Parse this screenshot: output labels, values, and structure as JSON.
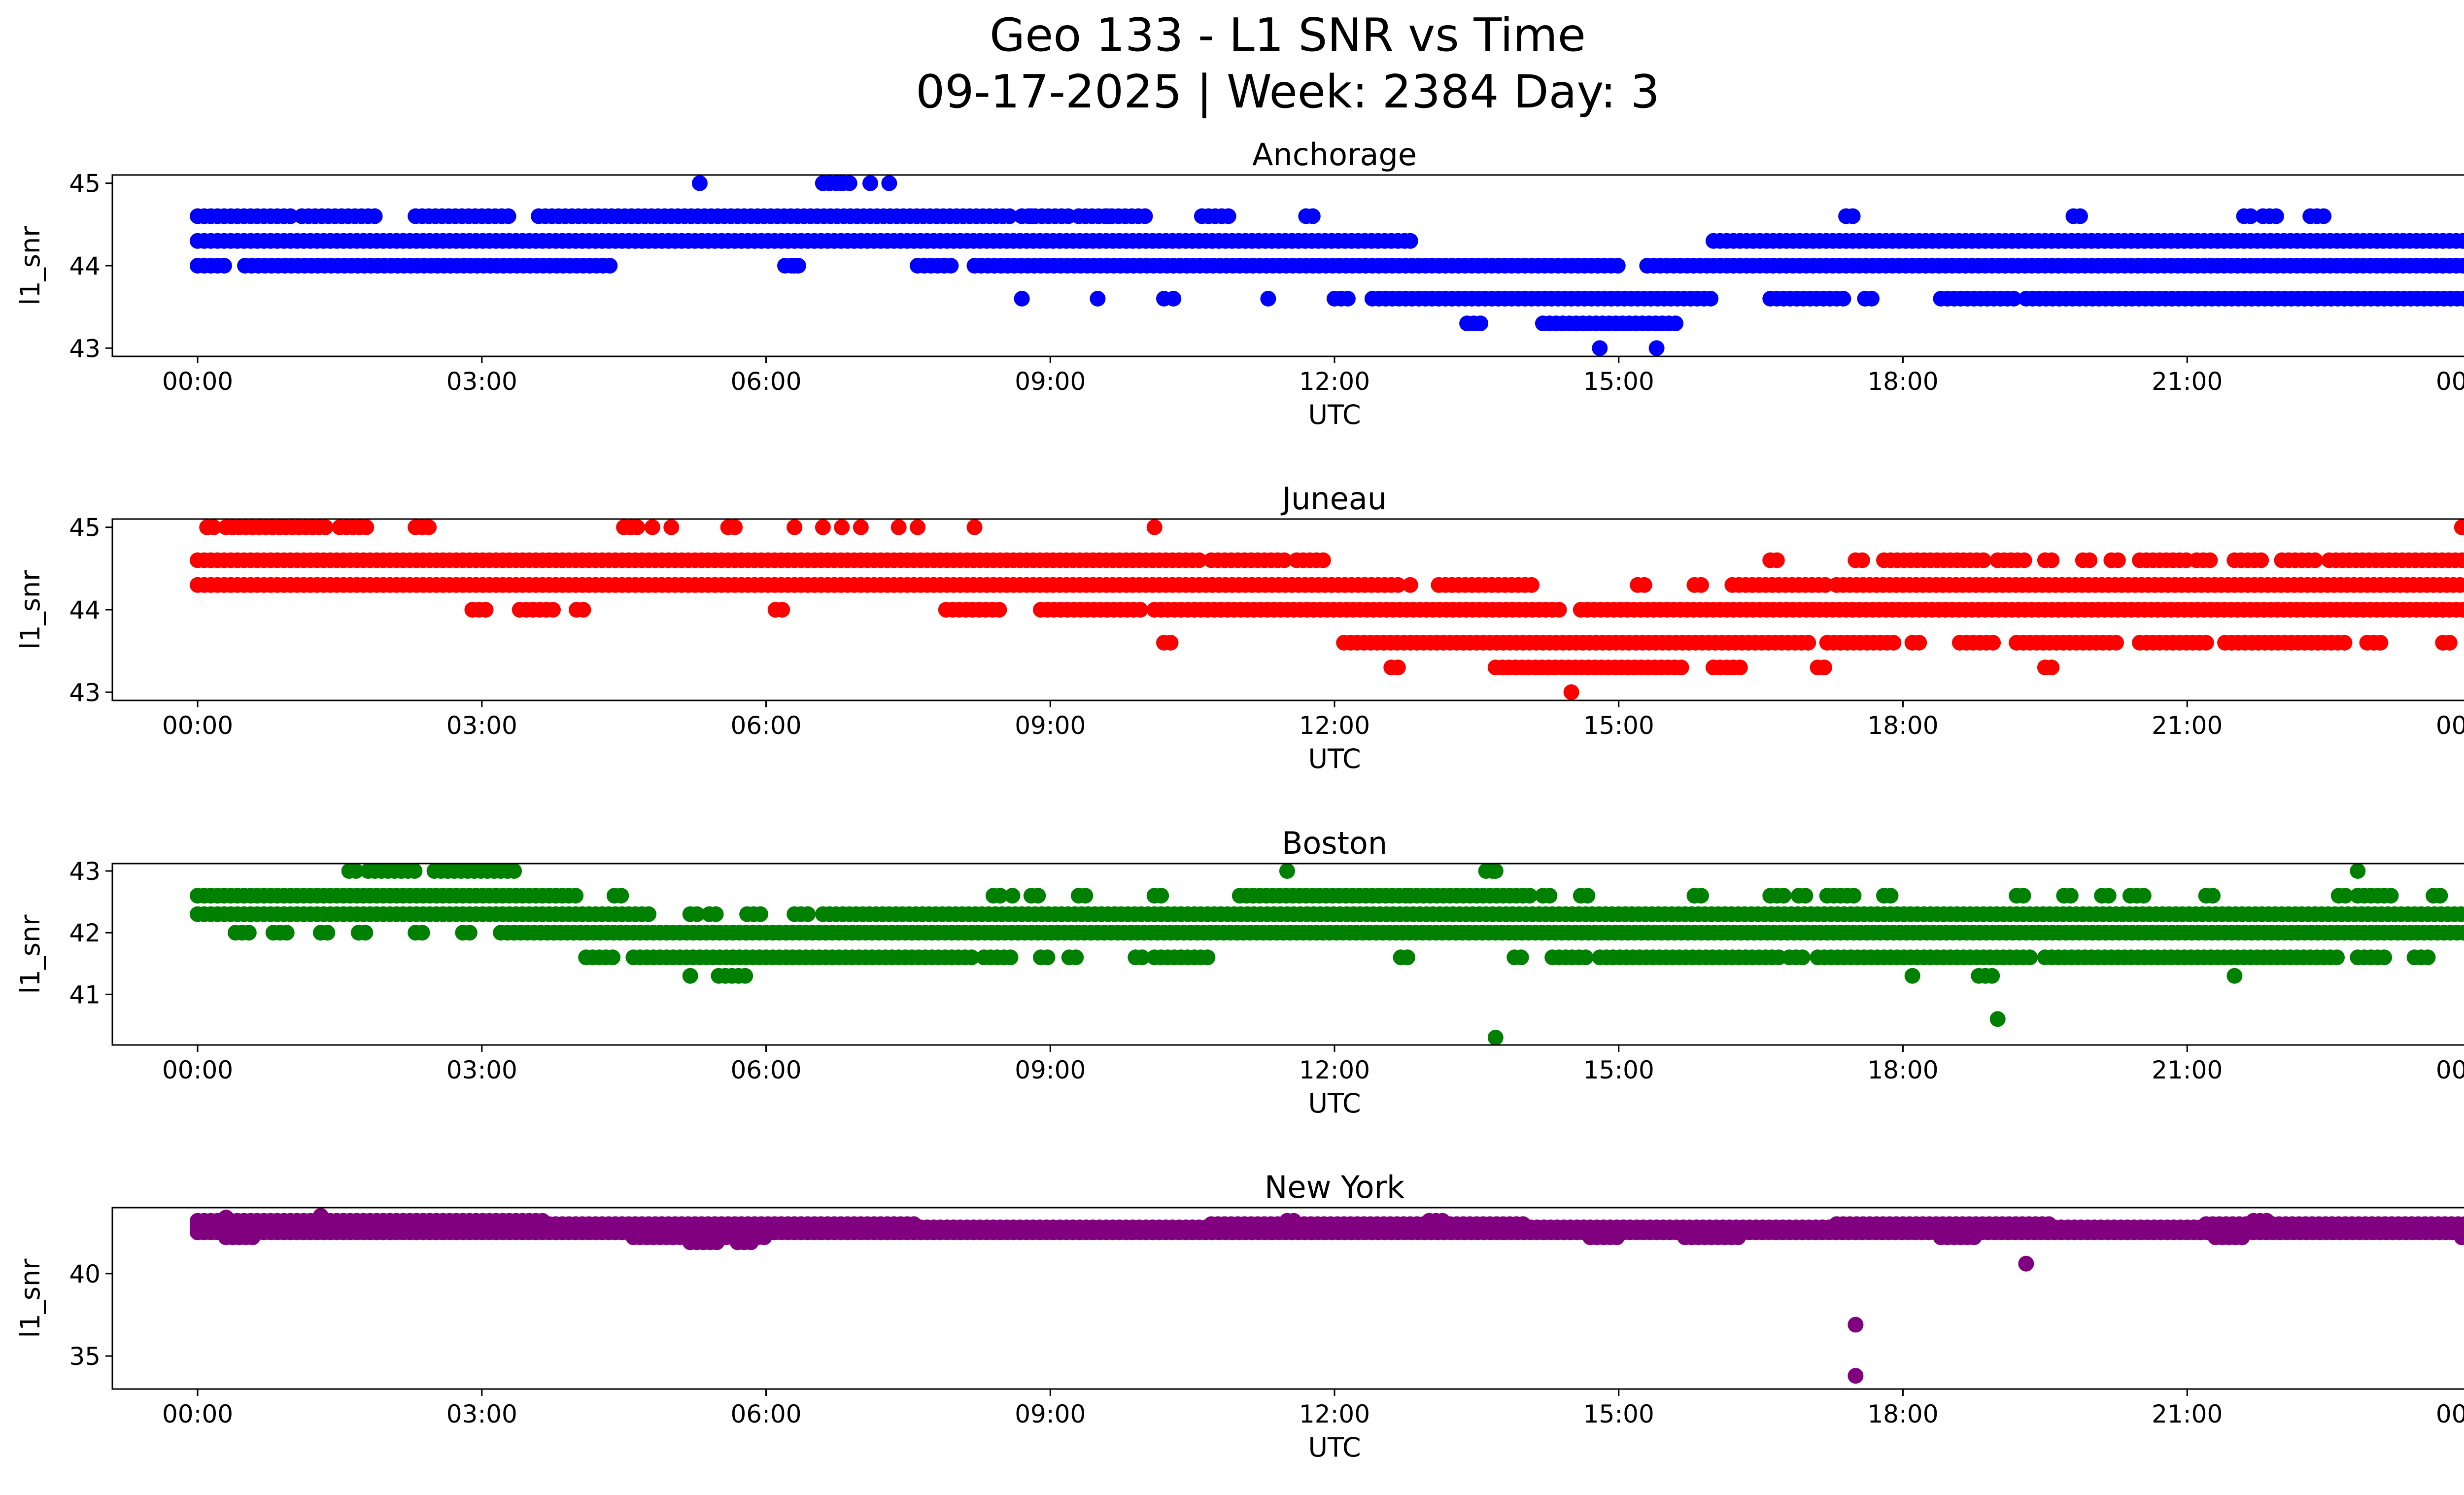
{
  "figure": {
    "title_line1": "Geo 133 - L1 SNR vs Time",
    "title_line2": "09-17-2025 | Week: 2384 Day: 3"
  },
  "chart_data": [
    {
      "type": "scatter",
      "title": "Anchorage",
      "xlabel": "UTC",
      "ylabel": "l1_snr",
      "color": "#0000ff",
      "ylim": [
        42.9,
        45.1
      ],
      "yticks": [
        43,
        44,
        45
      ],
      "xticks": [
        "00:00",
        "03:00",
        "06:00",
        "09:00",
        "12:00",
        "15:00",
        "18:00",
        "21:00",
        "00:00"
      ],
      "bands": [
        {
          "y": 44.6,
          "segments": [
            [
              0.0,
              1.0
            ],
            [
              1.1,
              1.9
            ],
            [
              2.3,
              3.3
            ],
            [
              3.6,
              8.6
            ],
            [
              8.7,
              9.2
            ],
            [
              9.3,
              10.0
            ],
            [
              10.6,
              10.9
            ],
            [
              11.7,
              11.8
            ],
            [
              17.4,
              17.5
            ],
            [
              19.8,
              19.9
            ],
            [
              21.6,
              21.7
            ],
            [
              21.8,
              22.0
            ],
            [
              22.3,
              22.5
            ]
          ]
        },
        {
          "y": 44.3,
          "segments": [
            [
              0.0,
              12.8
            ],
            [
              16.0,
              24.0
            ]
          ]
        },
        {
          "y": 44.0,
          "segments": [
            [
              0.0,
              0.3
            ],
            [
              0.5,
              4.4
            ],
            [
              6.2,
              6.4
            ],
            [
              7.6,
              8.0
            ],
            [
              8.2,
              15.0
            ],
            [
              15.3,
              24.0
            ]
          ]
        },
        {
          "y": 43.6,
          "segments": [
            [
              12.0,
              12.2
            ],
            [
              12.4,
              16.0
            ],
            [
              16.6,
              17.4
            ],
            [
              17.6,
              17.7
            ],
            [
              18.4,
              19.2
            ],
            [
              19.3,
              24.0
            ]
          ]
        },
        {
          "y": 43.3,
          "segments": [
            [
              13.4,
              13.6
            ],
            [
              14.2,
              15.6
            ]
          ]
        },
        {
          "y": 45.0,
          "segments": [
            [
              6.6,
              6.9
            ]
          ]
        }
      ],
      "points": [
        [
          5.3,
          45.0
        ],
        [
          6.6,
          45.0
        ],
        [
          6.8,
          45.0
        ],
        [
          7.1,
          45.0
        ],
        [
          7.3,
          45.0
        ],
        [
          6.3,
          44.0
        ],
        [
          8.7,
          43.6
        ],
        [
          9.5,
          43.6
        ],
        [
          10.2,
          43.6
        ],
        [
          10.3,
          43.6
        ],
        [
          11.3,
          43.6
        ],
        [
          14.8,
          43.0
        ],
        [
          15.4,
          43.0
        ],
        [
          12.8,
          44.3
        ],
        [
          17.6,
          43.6
        ],
        [
          8.8,
          44.6
        ],
        [
          9.6,
          44.6
        ]
      ]
    },
    {
      "type": "scatter",
      "title": "Juneau",
      "xlabel": "UTC",
      "ylabel": "l1_snr",
      "color": "#ff0000",
      "ylim": [
        42.9,
        45.1
      ],
      "yticks": [
        43,
        44,
        45
      ],
      "xticks": [
        "00:00",
        "03:00",
        "06:00",
        "09:00",
        "12:00",
        "15:00",
        "18:00",
        "21:00",
        "00:00"
      ],
      "bands": [
        {
          "y": 44.6,
          "segments": [
            [
              0.0,
              10.6
            ],
            [
              10.7,
              11.5
            ],
            [
              11.6,
              11.9
            ],
            [
              16.6,
              16.7
            ],
            [
              17.5,
              17.6
            ],
            [
              17.8,
              18.9
            ],
            [
              19.0,
              19.3
            ],
            [
              19.5,
              19.6
            ],
            [
              19.9,
              20.0
            ],
            [
              20.2,
              20.3
            ],
            [
              20.5,
              21.0
            ],
            [
              21.1,
              21.3
            ],
            [
              21.5,
              21.8
            ],
            [
              22.0,
              22.4
            ],
            [
              22.5,
              24.0
            ]
          ]
        },
        {
          "y": 44.3,
          "segments": [
            [
              0.0,
              12.7
            ],
            [
              13.1,
              14.1
            ],
            [
              15.2,
              15.3
            ],
            [
              15.8,
              15.9
            ],
            [
              16.2,
              17.2
            ],
            [
              17.3,
              24.0
            ]
          ]
        },
        {
          "y": 44.0,
          "segments": [
            [
              2.9,
              3.1
            ],
            [
              3.4,
              3.8
            ],
            [
              4.0,
              4.1
            ],
            [
              6.1,
              6.2
            ],
            [
              7.9,
              8.5
            ],
            [
              8.9,
              10.0
            ],
            [
              10.1,
              14.4
            ],
            [
              14.6,
              24.0
            ]
          ]
        },
        {
          "y": 43.6,
          "segments": [
            [
              10.2,
              10.3
            ],
            [
              12.1,
              17.0
            ],
            [
              17.2,
              17.9
            ],
            [
              18.1,
              18.2
            ],
            [
              18.6,
              19.0
            ],
            [
              19.2,
              20.3
            ],
            [
              20.5,
              21.2
            ],
            [
              21.4,
              22.7
            ],
            [
              22.9,
              23.1
            ],
            [
              23.7,
              23.8
            ]
          ]
        },
        {
          "y": 43.3,
          "segments": [
            [
              12.6,
              12.7
            ],
            [
              13.7,
              15.7
            ],
            [
              16.0,
              16.3
            ],
            [
              17.1,
              17.2
            ],
            [
              19.5,
              19.6
            ]
          ]
        },
        {
          "y": 45.0,
          "segments": [
            [
              0.1,
              0.2
            ],
            [
              0.3,
              1.4
            ],
            [
              1.5,
              1.8
            ],
            [
              2.3,
              2.5
            ],
            [
              4.5,
              4.7
            ],
            [
              5.6,
              5.7
            ]
          ]
        }
      ],
      "points": [
        [
          4.8,
          45.0
        ],
        [
          5.0,
          45.0
        ],
        [
          6.3,
          45.0
        ],
        [
          6.6,
          45.0
        ],
        [
          6.8,
          45.0
        ],
        [
          7.0,
          45.0
        ],
        [
          7.4,
          45.0
        ],
        [
          7.6,
          45.0
        ],
        [
          8.2,
          45.0
        ],
        [
          10.1,
          45.0
        ],
        [
          14.5,
          43.0
        ],
        [
          23.9,
          45.0
        ],
        [
          12.8,
          44.3
        ],
        [
          16.0,
          43.3
        ]
      ]
    },
    {
      "type": "scatter",
      "title": "Boston",
      "xlabel": "UTC",
      "ylabel": "l1_snr",
      "color": "#008000",
      "ylim": [
        40.18,
        43.12
      ],
      "yticks": [
        41,
        42,
        43
      ],
      "xticks": [
        "00:00",
        "03:00",
        "06:00",
        "09:00",
        "12:00",
        "15:00",
        "18:00",
        "21:00",
        "00:00"
      ],
      "bands": [
        {
          "y": 42.6,
          "segments": [
            [
              0.0,
              4.0
            ],
            [
              4.4,
              4.5
            ],
            [
              8.4,
              8.5
            ],
            [
              8.8,
              8.9
            ],
            [
              9.3,
              9.4
            ],
            [
              10.1,
              10.2
            ],
            [
              11.0,
              12.8
            ],
            [
              12.8,
              14.1
            ],
            [
              14.2,
              14.3
            ],
            [
              14.6,
              14.7
            ],
            [
              15.8,
              15.9
            ],
            [
              16.6,
              16.8
            ],
            [
              16.9,
              17.0
            ],
            [
              17.2,
              17.5
            ],
            [
              17.8,
              17.9
            ],
            [
              19.2,
              19.3
            ],
            [
              19.7,
              19.8
            ],
            [
              20.1,
              20.2
            ],
            [
              20.4,
              20.6
            ],
            [
              21.2,
              21.3
            ],
            [
              22.6,
              22.7
            ],
            [
              22.8,
              23.2
            ],
            [
              23.6,
              23.7
            ]
          ]
        },
        {
          "y": 42.3,
          "segments": [
            [
              0.0,
              4.8
            ],
            [
              5.2,
              5.3
            ],
            [
              5.4,
              5.5
            ],
            [
              5.8,
              6.0
            ],
            [
              6.3,
              6.5
            ],
            [
              6.6,
              24.0
            ]
          ]
        },
        {
          "y": 42.0,
          "segments": [
            [
              0.4,
              0.6
            ],
            [
              0.8,
              1.0
            ],
            [
              1.3,
              1.4
            ],
            [
              1.7,
              1.8
            ],
            [
              2.3,
              2.4
            ],
            [
              2.8,
              2.9
            ],
            [
              3.2,
              24.0
            ]
          ]
        },
        {
          "y": 41.6,
          "segments": [
            [
              4.1,
              4.4
            ],
            [
              4.6,
              8.2
            ],
            [
              8.3,
              8.6
            ],
            [
              8.9,
              9.0
            ],
            [
              9.2,
              9.3
            ],
            [
              9.9,
              10.0
            ],
            [
              10.1,
              10.7
            ],
            [
              12.7,
              12.8
            ],
            [
              13.9,
              14.0
            ],
            [
              14.3,
              14.7
            ],
            [
              14.8,
              16.7
            ],
            [
              16.8,
              17.0
            ],
            [
              17.1,
              19.4
            ],
            [
              19.5,
              22.6
            ],
            [
              22.8,
              23.1
            ],
            [
              23.4,
              23.6
            ]
          ]
        },
        {
          "y": 43.0,
          "segments": [
            [
              1.6,
              1.7
            ],
            [
              1.8,
              2.3
            ],
            [
              2.5,
              3.4
            ],
            [
              13.6,
              13.7
            ]
          ]
        },
        {
          "y": 41.3,
          "segments": [
            [
              5.5,
              5.8
            ],
            [
              18.8,
              19.0
            ]
          ]
        }
      ],
      "points": [
        [
          5.2,
          41.3
        ],
        [
          11.5,
          43.0
        ],
        [
          18.1,
          41.3
        ],
        [
          21.5,
          41.3
        ],
        [
          22.8,
          43.0
        ],
        [
          13.7,
          40.3
        ],
        [
          19.0,
          40.6
        ],
        [
          8.6,
          42.6
        ],
        [
          13.7,
          43.0
        ]
      ]
    },
    {
      "type": "scatter",
      "title": "New York",
      "xlabel": "UTC",
      "ylabel": "l1_snr",
      "color": "#800080",
      "ylim": [
        33.0,
        44.0
      ],
      "yticks": [
        35,
        40
      ],
      "xticks": [
        "00:00",
        "03:00",
        "06:00",
        "09:00",
        "12:00",
        "15:00",
        "18:00",
        "21:00",
        "00:00"
      ],
      "bands": [
        {
          "y": 43.2,
          "segments": [
            [
              0.0,
              3.7
            ],
            [
              11.5,
              11.6
            ],
            [
              13.0,
              13.2
            ],
            [
              21.7,
              21.9
            ]
          ]
        },
        {
          "y": 42.8,
          "segments": [
            [
              0.0,
              24.0
            ]
          ]
        },
        {
          "y": 42.5,
          "segments": [
            [
              0.0,
              24.0
            ]
          ]
        },
        {
          "y": 42.2,
          "segments": [
            [
              0.3,
              0.6
            ],
            [
              4.6,
              5.6
            ],
            [
              5.7,
              6.0
            ],
            [
              14.7,
              15.0
            ],
            [
              15.7,
              16.3
            ],
            [
              18.4,
              18.8
            ],
            [
              21.3,
              21.6
            ],
            [
              23.9,
              24.0
            ]
          ]
        },
        {
          "y": 43.0,
          "segments": [
            [
              0.0,
              7.6
            ],
            [
              10.7,
              14.0
            ],
            [
              17.3,
              19.6
            ],
            [
              21.2,
              24.0
            ]
          ]
        },
        {
          "y": 41.9,
          "segments": [
            [
              5.2,
              5.5
            ],
            [
              5.7,
              5.9
            ]
          ]
        }
      ],
      "points": [
        [
          1.3,
          43.5
        ],
        [
          0.3,
          43.4
        ],
        [
          17.5,
          36.9
        ],
        [
          17.5,
          33.8
        ],
        [
          19.3,
          40.6
        ]
      ]
    }
  ]
}
